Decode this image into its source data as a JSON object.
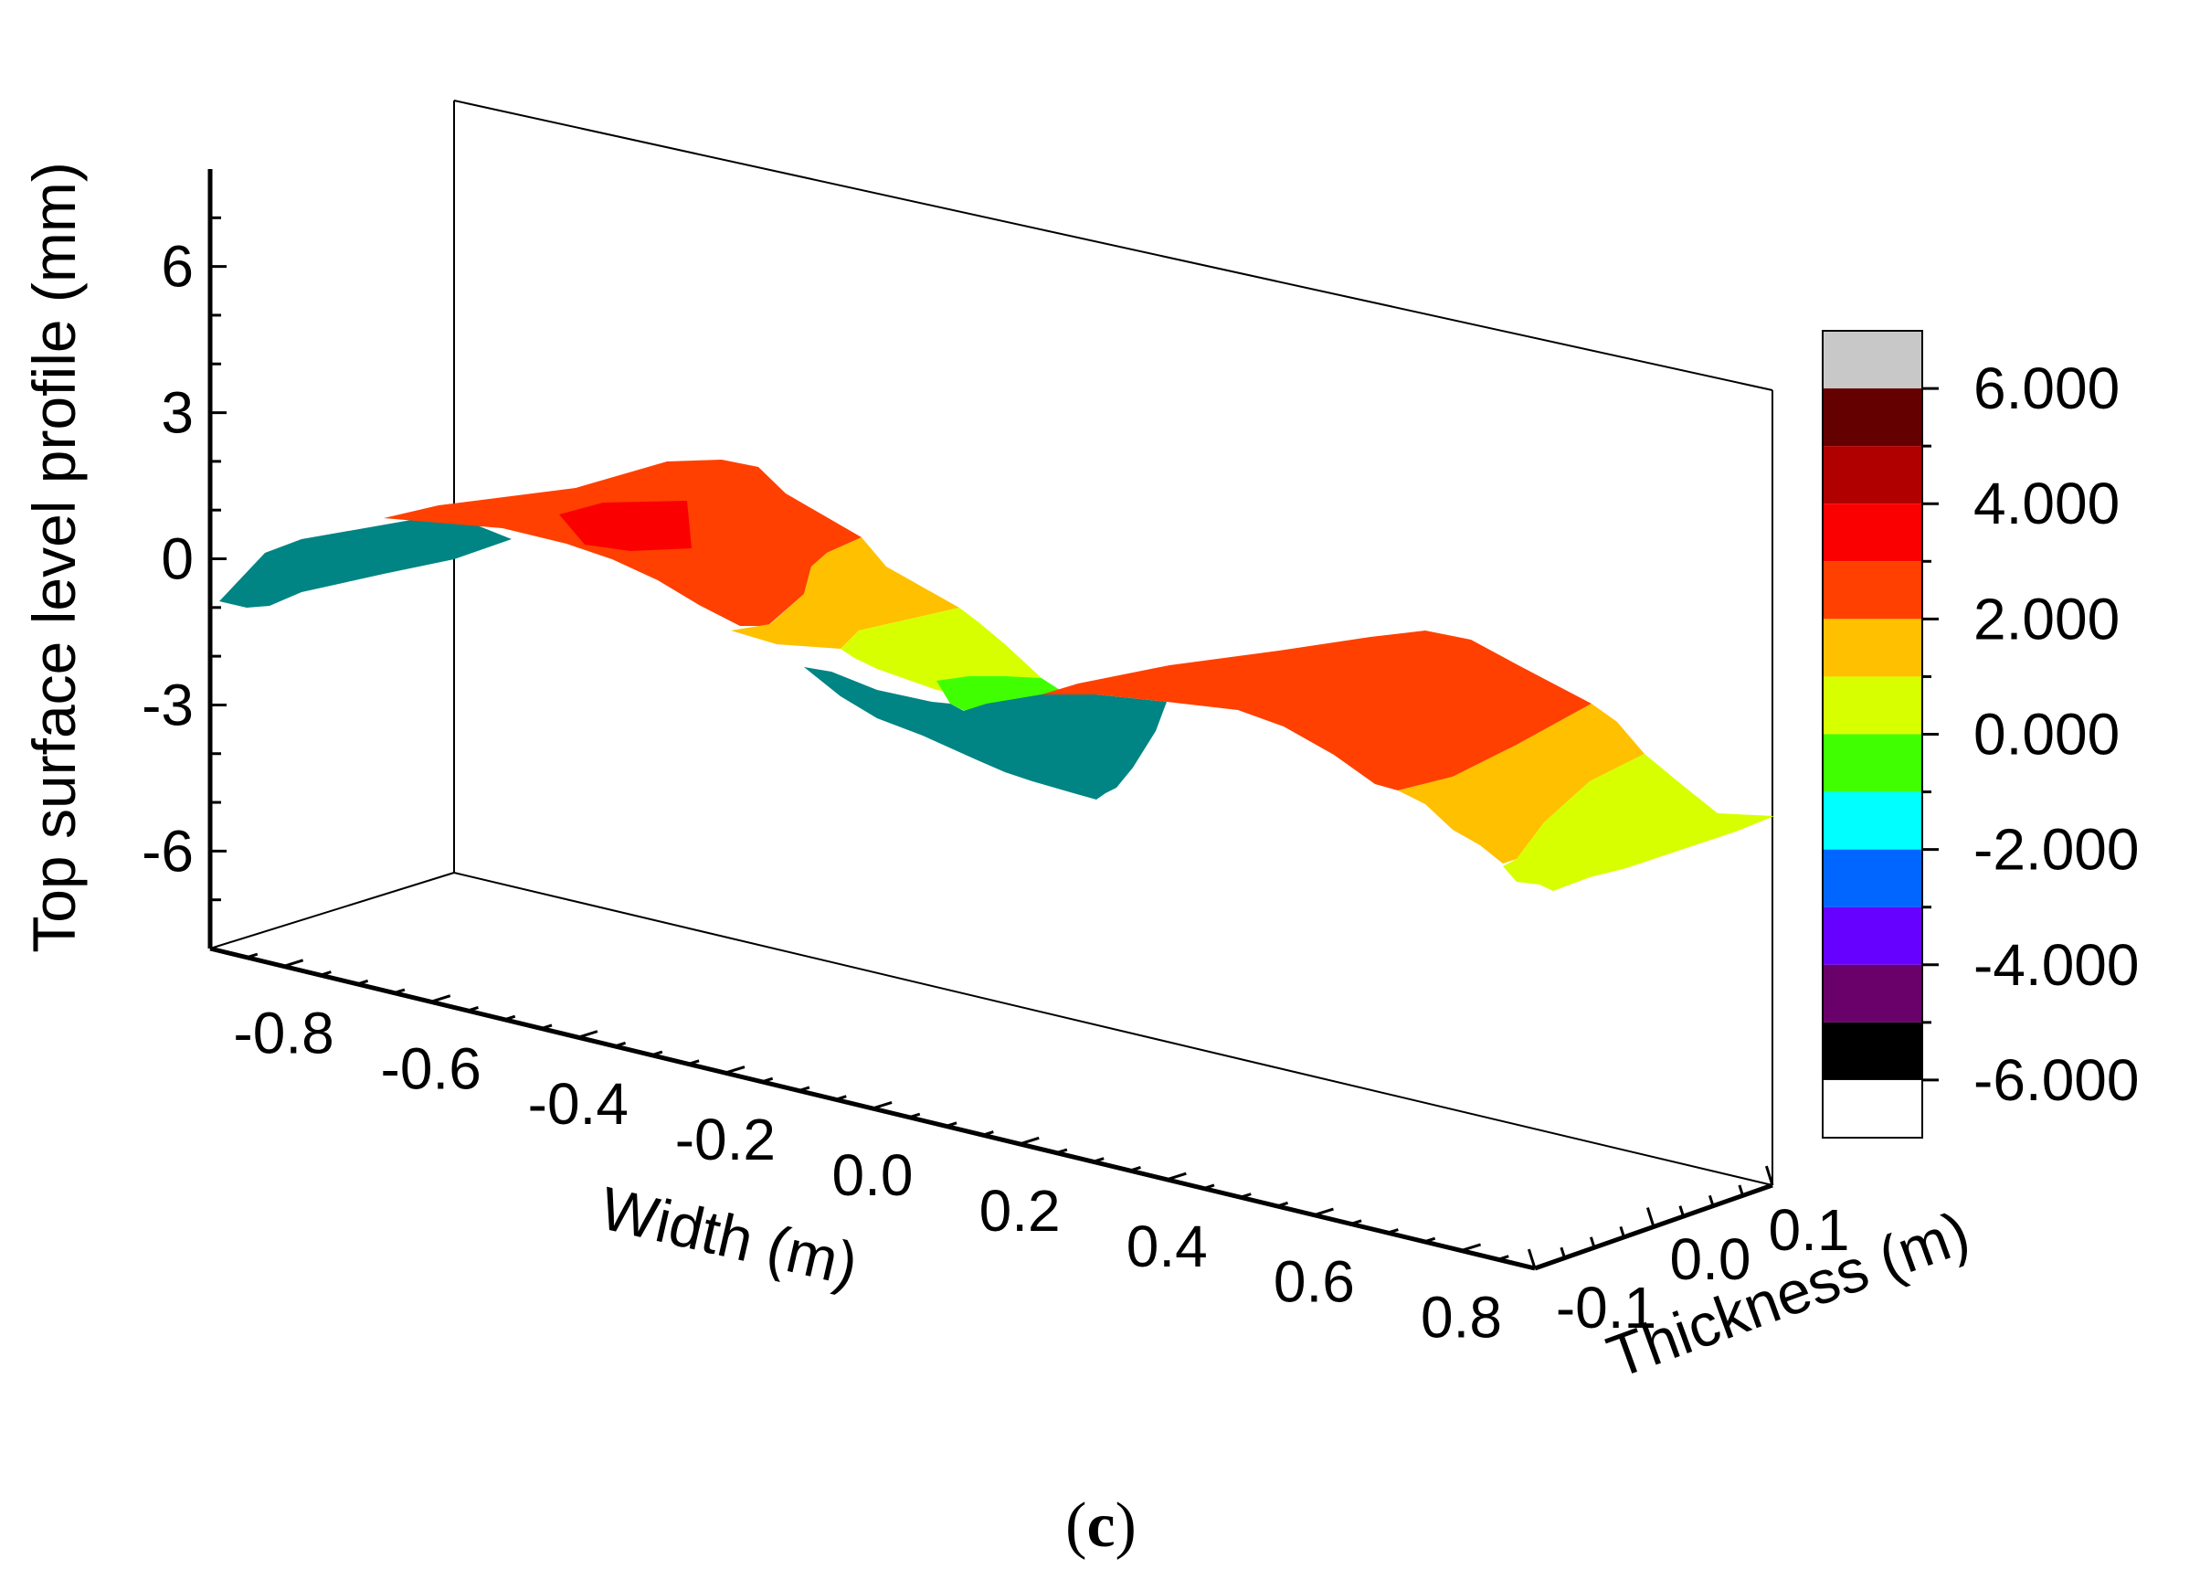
{
  "chart_data": {
    "type": "surface3d",
    "title": "",
    "caption_open": "(",
    "caption_letter": "c",
    "caption_close": ")",
    "zlabel": "Top surface level profile (mm)",
    "xlabel": "Width (m)",
    "ylabel": "Thickness (m)",
    "z_ticks": [
      {
        "value": 6,
        "label": "6"
      },
      {
        "value": 3,
        "label": "3"
      },
      {
        "value": 0,
        "label": "0"
      },
      {
        "value": -3,
        "label": "-3"
      },
      {
        "value": -6,
        "label": "-6"
      }
    ],
    "x_ticks": [
      {
        "value": -0.8,
        "label": "-0.8"
      },
      {
        "value": -0.6,
        "label": "-0.6"
      },
      {
        "value": -0.4,
        "label": "-0.4"
      },
      {
        "value": -0.2,
        "label": "-0.2"
      },
      {
        "value": 0.0,
        "label": "0.0"
      },
      {
        "value": 0.2,
        "label": "0.2"
      },
      {
        "value": 0.4,
        "label": "0.4"
      },
      {
        "value": 0.6,
        "label": "0.6"
      },
      {
        "value": 0.8,
        "label": "0.8"
      }
    ],
    "y_ticks": [
      {
        "value": -0.1,
        "label": "-0.1"
      },
      {
        "value": 0.0,
        "label": "0.0"
      },
      {
        "value": 0.1,
        "label": "0.1"
      }
    ],
    "zlim": [
      -8,
      8
    ],
    "xlim": [
      -0.9,
      0.9
    ],
    "ylim": [
      -0.1,
      0.1
    ],
    "colorbar": {
      "labels": [
        "6.000",
        "4.000",
        "2.000",
        "0.000",
        "-2.000",
        "-4.000",
        "-6.000"
      ],
      "label_values": [
        6,
        4,
        2,
        0,
        -2,
        -4,
        -6
      ],
      "range": [
        -7,
        7
      ],
      "bands": [
        {
          "min": 6,
          "max": 7,
          "color": "#c8c8c8"
        },
        {
          "min": 5,
          "max": 6,
          "color": "#650000"
        },
        {
          "min": 4,
          "max": 5,
          "color": "#b00000"
        },
        {
          "min": 3,
          "max": 4,
          "color": "#fa0000"
        },
        {
          "min": 2,
          "max": 3,
          "color": "#ff4000"
        },
        {
          "min": 1,
          "max": 2,
          "color": "#ffc000"
        },
        {
          "min": 0,
          "max": 1,
          "color": "#d8ff00"
        },
        {
          "min": -1,
          "max": 0,
          "color": "#40ff00"
        },
        {
          "min": -2,
          "max": -1,
          "color": "#00ffff"
        },
        {
          "min": -3,
          "max": -2,
          "color": "#0066ff"
        },
        {
          "min": -4,
          "max": -3,
          "color": "#6600ff"
        },
        {
          "min": -5,
          "max": -4,
          "color": "#6a006a"
        },
        {
          "min": -6,
          "max": -5,
          "color": "#000000"
        }
      ]
    },
    "surface_regions": [
      {
        "name": "underside-left",
        "color": "#008484"
      },
      {
        "name": "band-2-to-3-left",
        "color": "#ff4000"
      },
      {
        "name": "band-3-to-4-patch",
        "color": "#fa0000"
      },
      {
        "name": "band-1-to-2-center",
        "color": "#ffc000"
      },
      {
        "name": "band-0-to-1-center",
        "color": "#d8ff00"
      },
      {
        "name": "band-neg1-to-0-center",
        "color": "#40ff00"
      },
      {
        "name": "underside-center",
        "color": "#008484"
      },
      {
        "name": "band-2-to-3-right",
        "color": "#ff4000"
      },
      {
        "name": "band-1-to-2-right",
        "color": "#ffc000"
      },
      {
        "name": "band-0-to-1-right",
        "color": "#d8ff00"
      }
    ]
  }
}
